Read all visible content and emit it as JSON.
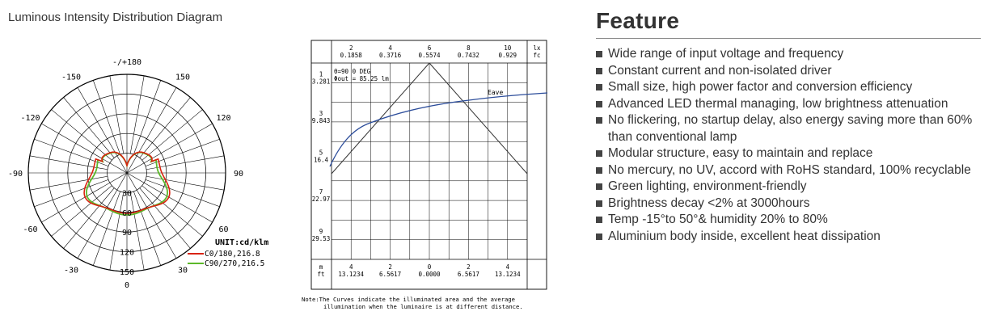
{
  "polar": {
    "title": "Luminous Intensity Distribution Diagram",
    "angle_labels": [
      {
        "text": "-/+180",
        "deg": 180
      },
      {
        "text": "150",
        "deg": 150
      },
      {
        "text": "-150",
        "deg": -150
      },
      {
        "text": "120",
        "deg": 120
      },
      {
        "text": "-120",
        "deg": -120
      },
      {
        "text": "90",
        "deg": 90
      },
      {
        "text": "-90",
        "deg": -90
      },
      {
        "text": "60",
        "deg": 60
      },
      {
        "text": "-60",
        "deg": -60
      },
      {
        "text": "30",
        "deg": 30
      },
      {
        "text": "-30",
        "deg": -30
      },
      {
        "text": "0",
        "deg": 0
      }
    ],
    "radial_labels": [
      "30",
      "60",
      "90",
      "120",
      "150"
    ],
    "unit": "UNIT:cd/klm",
    "legend": [
      {
        "label": "C0/180,216.8",
        "color": "#d9230f"
      },
      {
        "label": "C90/270,216.5",
        "color": "#5cb82a"
      }
    ]
  },
  "grid": {
    "top_headers": [
      {
        "top": "2",
        "bottom": "0.1858"
      },
      {
        "top": "4",
        "bottom": "0.3716"
      },
      {
        "top": "6",
        "bottom": "0.5574"
      },
      {
        "top": "8",
        "bottom": "0.7432"
      },
      {
        "top": "10",
        "bottom": "0.929"
      },
      {
        "top": "lx",
        "bottom": "fc"
      }
    ],
    "left_headers": [
      {
        "top": "1",
        "bottom": "3.281"
      },
      {
        "top": "3",
        "bottom": "9.843"
      },
      {
        "top": "5",
        "bottom": "16.4"
      },
      {
        "top": "7",
        "bottom": "22.97"
      },
      {
        "top": "9",
        "bottom": "29.53"
      }
    ],
    "corner": {
      "top": "m",
      "bottom": "ft"
    },
    "bottom_headers": [
      {
        "top": "4",
        "bottom": "13.1234"
      },
      {
        "top": "2",
        "bottom": "6.5617"
      },
      {
        "top": "0",
        "bottom": "0.0000"
      },
      {
        "top": "2",
        "bottom": "6.5617"
      },
      {
        "top": "4",
        "bottom": "13.1234"
      }
    ],
    "info_line1": "θ=90  0 DEG",
    "info_line2": "Φout = 85.25 lm",
    "curve_label": "Eave",
    "note_line1": "Note:The Curves indicate the illuminated area and the average",
    "note_line2": "illumination when the luminaire is at different distance."
  },
  "features": {
    "title": "Feature",
    "items": [
      "Wide range of input voltage and frequency",
      "Constant current and non-isolated driver",
      "Small size, high power factor and conversion efficiency",
      "Advanced LED thermal managing, low brightness attenuation",
      "No flickering, no startup delay, also energy saving more than 60% than conventional lamp",
      "Modular structure, easy to maintain and replace",
      "No mercury, no UV, accord with RoHS standard, 100% recyclable",
      "Green lighting, environment-friendly",
      "Brightness decay <2% at 3000hours",
      "Temp -15°to 50°& humidity 20% to 80%",
      "Aluminium body inside, excellent heat dissipation"
    ]
  }
}
